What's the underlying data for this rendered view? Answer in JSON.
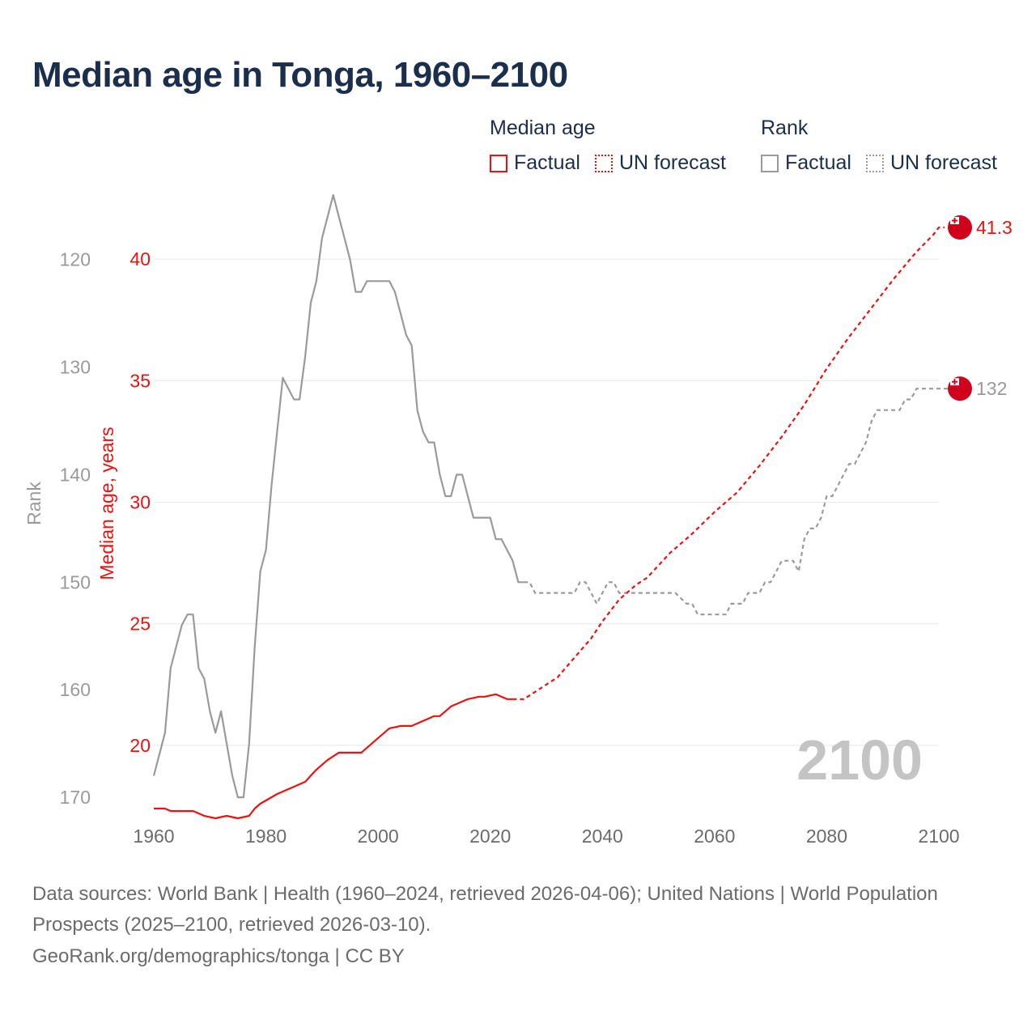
{
  "title": "Median age in Tonga, 1960–2100",
  "legend": {
    "median_heading": "Median age",
    "rank_heading": "Rank",
    "factual": "Factual",
    "forecast": "UN forecast"
  },
  "colors": {
    "median": "#ee1111",
    "rank": "#9a9a9a",
    "title": "#1b2e4b",
    "flag_red": "#d0021b"
  },
  "footer": {
    "sources": "Data sources: World Bank | Health (1960–2024, retrieved 2026-04-06); United Nations | World Population Prospects (2025–2100, retrieved 2026-03-10).",
    "credit": "GeoRank.org/demographics/tonga | CC BY"
  },
  "chart_data": {
    "type": "line",
    "title": "Median age in Tonga, 1960–2100",
    "year_watermark": "2100",
    "xlabel": "",
    "ylabel_left_outer": "Rank",
    "ylabel_left_inner": "Median age, years",
    "xlim": [
      1960,
      2100
    ],
    "xticks": [
      "1960",
      "1980",
      "2000",
      "2020",
      "2040",
      "2060",
      "2080",
      "2100"
    ],
    "median_axis": {
      "ylim": [
        17.2,
        42.5
      ],
      "ticks": [
        "20",
        "25",
        "30",
        "35",
        "40"
      ]
    },
    "rank_axis": {
      "ylim": [
        171.5,
        114.3
      ],
      "inverted": true,
      "ticks": [
        "120",
        "130",
        "140",
        "150",
        "160",
        "170"
      ]
    },
    "end_labels": {
      "median": "41.3",
      "rank": "132"
    },
    "series": [
      {
        "name": "Median age — Factual",
        "points": [
          [
            1960,
            17.4
          ],
          [
            1962,
            17.4
          ],
          [
            1963,
            17.3
          ],
          [
            1967,
            17.3
          ],
          [
            1969,
            17.1
          ],
          [
            1971,
            17.0
          ],
          [
            1973,
            17.1
          ],
          [
            1975,
            17.0
          ],
          [
            1977,
            17.1
          ],
          [
            1978,
            17.4
          ],
          [
            1979,
            17.6
          ],
          [
            1982,
            18.0
          ],
          [
            1985,
            18.3
          ],
          [
            1987,
            18.5
          ],
          [
            1989,
            19.0
          ],
          [
            1991,
            19.4
          ],
          [
            1993,
            19.7
          ],
          [
            1997,
            19.7
          ],
          [
            1999,
            20.1
          ],
          [
            2002,
            20.7
          ],
          [
            2004,
            20.8
          ],
          [
            2006,
            20.8
          ],
          [
            2008,
            21.0
          ],
          [
            2010,
            21.2
          ],
          [
            2011,
            21.2
          ],
          [
            2013,
            21.6
          ],
          [
            2016,
            21.9
          ],
          [
            2018,
            22.0
          ],
          [
            2019,
            22.0
          ],
          [
            2021,
            22.1
          ],
          [
            2023,
            21.9
          ],
          [
            2024,
            21.9
          ]
        ]
      },
      {
        "name": "Median age — UN forecast",
        "points": [
          [
            2024,
            21.9
          ],
          [
            2026,
            21.9
          ],
          [
            2028,
            22.2
          ],
          [
            2030,
            22.5
          ],
          [
            2032,
            22.8
          ],
          [
            2035,
            23.6
          ],
          [
            2038,
            24.4
          ],
          [
            2040,
            25.1
          ],
          [
            2043,
            26.0
          ],
          [
            2046,
            26.6
          ],
          [
            2048,
            26.9
          ],
          [
            2052,
            27.9
          ],
          [
            2056,
            28.7
          ],
          [
            2060,
            29.6
          ],
          [
            2064,
            30.4
          ],
          [
            2068,
            31.5
          ],
          [
            2072,
            32.7
          ],
          [
            2076,
            34.0
          ],
          [
            2080,
            35.5
          ],
          [
            2084,
            36.8
          ],
          [
            2088,
            38.0
          ],
          [
            2092,
            39.2
          ],
          [
            2096,
            40.3
          ],
          [
            2099,
            41.0
          ],
          [
            2100,
            41.3
          ],
          [
            2101,
            41.3
          ]
        ]
      },
      {
        "name": "Rank — Factual",
        "points": [
          [
            1960,
            168
          ],
          [
            1962,
            164
          ],
          [
            1963,
            158
          ],
          [
            1965,
            154
          ],
          [
            1966,
            153
          ],
          [
            1967,
            153
          ],
          [
            1968,
            158
          ],
          [
            1969,
            159
          ],
          [
            1970,
            162
          ],
          [
            1971,
            164
          ],
          [
            1972,
            162
          ],
          [
            1974,
            168
          ],
          [
            1975,
            170
          ],
          [
            1976,
            170
          ],
          [
            1977,
            165
          ],
          [
            1978,
            156
          ],
          [
            1979,
            149
          ],
          [
            1980,
            147
          ],
          [
            1981,
            141
          ],
          [
            1982,
            136
          ],
          [
            1983,
            131
          ],
          [
            1984,
            132
          ],
          [
            1985,
            133
          ],
          [
            1986,
            133
          ],
          [
            1987,
            129
          ],
          [
            1988,
            124
          ],
          [
            1989,
            122
          ],
          [
            1990,
            118
          ],
          [
            1991,
            116
          ],
          [
            1992,
            114
          ],
          [
            1993,
            116
          ],
          [
            1994,
            118
          ],
          [
            1995,
            120
          ],
          [
            1996,
            123
          ],
          [
            1997,
            123
          ],
          [
            1998,
            122
          ],
          [
            2002,
            122
          ],
          [
            2003,
            123
          ],
          [
            2004,
            125
          ],
          [
            2005,
            127
          ],
          [
            2006,
            128
          ],
          [
            2007,
            134
          ],
          [
            2008,
            136
          ],
          [
            2009,
            137
          ],
          [
            2010,
            137
          ],
          [
            2011,
            140
          ],
          [
            2012,
            142
          ],
          [
            2013,
            142
          ],
          [
            2014,
            140
          ],
          [
            2015,
            140
          ],
          [
            2016,
            142
          ],
          [
            2017,
            144
          ],
          [
            2020,
            144
          ],
          [
            2021,
            146
          ],
          [
            2022,
            146
          ],
          [
            2023,
            147
          ],
          [
            2024,
            148
          ],
          [
            2025,
            150
          ],
          [
            2026,
            150
          ]
        ]
      },
      {
        "name": "Rank — UN forecast",
        "points": [
          [
            2026,
            150
          ],
          [
            2027,
            150
          ],
          [
            2028,
            151
          ],
          [
            2035,
            151
          ],
          [
            2036,
            150
          ],
          [
            2037,
            150
          ],
          [
            2038,
            151
          ],
          [
            2039,
            152
          ],
          [
            2040,
            151
          ],
          [
            2041,
            150
          ],
          [
            2042,
            150
          ],
          [
            2043,
            151
          ],
          [
            2045,
            151
          ],
          [
            2053,
            151
          ],
          [
            2055,
            152
          ],
          [
            2056,
            152
          ],
          [
            2057,
            153
          ],
          [
            2062,
            153
          ],
          [
            2063,
            152
          ],
          [
            2065,
            152
          ],
          [
            2066,
            151
          ],
          [
            2068,
            151
          ],
          [
            2069,
            150
          ],
          [
            2070,
            150
          ],
          [
            2071,
            149
          ],
          [
            2072,
            148
          ],
          [
            2073,
            148
          ],
          [
            2074,
            148
          ],
          [
            2075,
            149
          ],
          [
            2076,
            146
          ],
          [
            2077,
            145
          ],
          [
            2078,
            145
          ],
          [
            2079,
            144
          ],
          [
            2080,
            142
          ],
          [
            2081,
            142
          ],
          [
            2082,
            141
          ],
          [
            2083,
            140
          ],
          [
            2084,
            139
          ],
          [
            2085,
            139
          ],
          [
            2086,
            138
          ],
          [
            2087,
            137
          ],
          [
            2088,
            135
          ],
          [
            2089,
            134
          ],
          [
            2093,
            134
          ],
          [
            2094,
            133
          ],
          [
            2095,
            133
          ],
          [
            2096,
            132
          ],
          [
            2103,
            132
          ]
        ]
      }
    ]
  }
}
